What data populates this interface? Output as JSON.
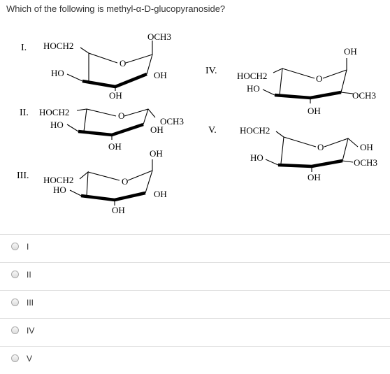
{
  "question": {
    "text": "Which of the following is methyl-α-D-glucopyranoside?"
  },
  "structures": [
    {
      "numeral": "I.",
      "labels": {
        "hoch2": "HOCH2",
        "ho": "HO",
        "och3": "OCH3",
        "oh_c2": "OH",
        "oh_c3": "OH",
        "ring_o": "O"
      }
    },
    {
      "numeral": "II.",
      "labels": {
        "hoch2": "HOCH2",
        "ho": "HO",
        "och3": "OCH3",
        "oh_c2": "OH",
        "oh_c3": "OH",
        "ring_o": "O"
      }
    },
    {
      "numeral": "III.",
      "labels": {
        "hoch2": "HOCH2",
        "ho": "HO",
        "oh_top": "OH",
        "oh_c2": "OH",
        "oh_c3": "OH",
        "ring_o": "O"
      }
    },
    {
      "numeral": "IV.",
      "labels": {
        "hoch2": "HOCH2",
        "ho": "HO",
        "oh_top": "OH",
        "och3": "OCH3",
        "oh_c3": "OH",
        "ring_o": "O"
      }
    },
    {
      "numeral": "V.",
      "labels": {
        "hoch2": "HOCH2",
        "ho": "HO",
        "oh_top": "OH",
        "och3": "OCH3",
        "oh_c3": "OH",
        "ring_o": "O"
      }
    }
  ],
  "options": [
    {
      "label": "I"
    },
    {
      "label": "II"
    },
    {
      "label": "III"
    },
    {
      "label": "IV"
    },
    {
      "label": "V"
    }
  ]
}
